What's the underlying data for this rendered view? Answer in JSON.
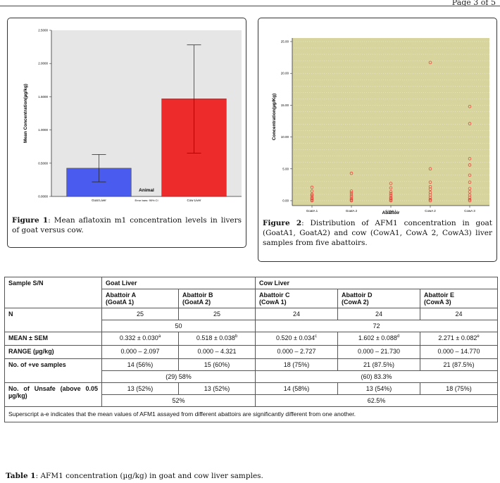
{
  "page": {
    "header": "Page 3 of 5"
  },
  "figure1": {
    "caption_label": "Figure 1",
    "caption_text": ": Mean aflatoxin m1 concentration levels in livers of goat versus cow.",
    "chart_data": {
      "type": "bar",
      "categories": [
        "Goat Liver",
        "Cow Liver"
      ],
      "values": [
        0.425,
        1.47
      ],
      "error_low": [
        0.22,
        0.65
      ],
      "error_high": [
        0.63,
        2.28
      ],
      "colors": [
        "#4a5cf0",
        "#ee2b2b"
      ],
      "xlabel": "Animal",
      "ylabel": "Mean Concentration(µg/kg)",
      "ylim": [
        0,
        2.5
      ],
      "yticks": [
        "0.0000",
        "0.5000",
        "1.0000",
        "1.5000",
        "2.0000",
        "2.5000"
      ],
      "note": "Error bars: 95% CI",
      "grid": false
    }
  },
  "figure2": {
    "caption_label": "Figure 2",
    "caption_text": ": Distribution of AFM1 concentration in goat (GoatA1, GoatA2) and cow (CowA1, CowA 2, CowA3) liver samples from five abattoirs.",
    "chart_data": {
      "type": "scatter",
      "categories": [
        "GoatA 1",
        "GoatA 2",
        "CowA 1",
        "CowA 2",
        "CowA 3"
      ],
      "x": [
        1,
        1,
        1,
        1,
        1,
        1,
        1,
        1,
        2,
        2,
        2,
        2,
        2,
        2,
        2,
        2,
        3,
        3,
        3,
        3,
        3,
        3,
        3,
        3,
        3,
        4,
        4,
        4,
        4,
        4,
        4,
        4,
        4,
        4,
        4,
        5,
        5,
        5,
        5,
        5,
        5,
        5,
        5,
        5,
        5,
        5,
        5
      ],
      "y": [
        0,
        0.1,
        0.3,
        0.5,
        0.8,
        1.0,
        1.5,
        2.1,
        0,
        0.1,
        0.3,
        0.6,
        0.9,
        1.2,
        1.5,
        4.3,
        0,
        0.1,
        0.3,
        0.5,
        0.8,
        1.1,
        1.4,
        2.0,
        2.7,
        0,
        0.2,
        0.5,
        0.9,
        1.3,
        1.8,
        2.2,
        2.9,
        5.0,
        21.7,
        0,
        0.2,
        0.5,
        0.9,
        1.4,
        1.9,
        2.9,
        4.0,
        5.6,
        6.6,
        12.1,
        14.8
      ],
      "xlabel": "Abattoir",
      "ylabel": "Concentration(µg/Kg)",
      "ylim": [
        0,
        25
      ],
      "yticks": [
        "0.00",
        "5.00",
        "10.00",
        "15.00",
        "20.00",
        "25.00"
      ],
      "background": "#d8d49e",
      "marker_color": "#e8352e",
      "grid": true
    }
  },
  "table": {
    "caption_label": "Table 1",
    "caption_text": ": AFM1 concentration (µg/kg) in goat and cow liver samples.",
    "headers": {
      "sample": "Sample S/N",
      "goat": "Goat Liver",
      "cow": "Cow Liver",
      "a1": "Abattoir A",
      "a2": "(GoatA 1)",
      "b1": "Abattoir B",
      "b2": "(GoatA 2)",
      "c1": "Abattoir C",
      "c2": "(CowA 1)",
      "d1": "Abattoir D",
      "d2": "(CowA 2)",
      "e1": "Abattoir E",
      "e2": "(CowA 3)"
    },
    "n": {
      "label": "N",
      "values": [
        "25",
        "25",
        "24",
        "24",
        "24"
      ],
      "goat_total": "50",
      "cow_total": "72"
    },
    "mean": {
      "label": "MEAN ± SEM",
      "values": [
        "0.332 ± 0.030",
        "0.518 ± 0.038",
        "0.520 ± 0.034",
        "1.602 ± 0.088",
        "2.271 ± 0.082"
      ],
      "sups": [
        "a",
        "b",
        "c",
        "d",
        "e"
      ]
    },
    "range": {
      "label": "RANGE (µg/kg)",
      "values": [
        "0.000 – 2.097",
        "0.000 – 4.321",
        "0.000 – 2.727",
        "0.000 – 21.730",
        "0.000 – 14.770"
      ]
    },
    "positive": {
      "label": "No. of +ve samples",
      "values": [
        "14 (56%)",
        "15 (60%)",
        "18 (75%)",
        "21 (87.5%)",
        "21 (87.5%)"
      ],
      "goat_total": "(29) 58%",
      "cow_total": "(60) 83.3%"
    },
    "unsafe": {
      "label": "No. of Unsafe (above 0.05 µg/kg)",
      "values": [
        "13 (52%)",
        "13 (52%)",
        "14 (58%)",
        "13 (54%)",
        "18 (75%)"
      ],
      "goat_total": "52%",
      "cow_total": "62.5%"
    },
    "footnote": "Superscript a-e indicates that the mean values of AFM1 assayed from different abattoirs are significantly different from one another."
  }
}
